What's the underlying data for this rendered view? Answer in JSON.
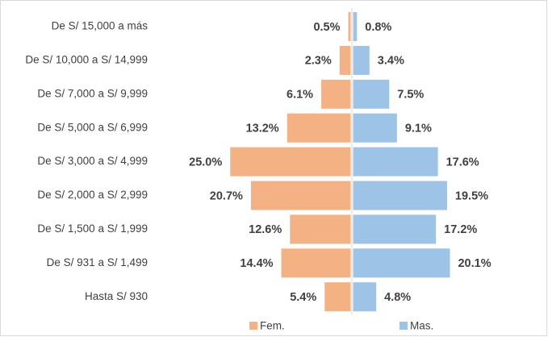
{
  "chart_data": {
    "type": "bar",
    "orientation": "horizontal",
    "layout": "diverging",
    "categories": [
      "De S/ 15,000 a más",
      "De S/ 10,000 a S/ 14,999",
      "De S/ 7,000 a S/ 9,999",
      "De S/ 5,000 a S/ 6,999",
      "De S/ 3,000 a S/ 4,999",
      "De S/ 2,000 a S/ 2,999",
      "De S/ 1,500 a S/ 1,999",
      "De S/ 931 a S/ 1,499",
      "Hasta S/ 930"
    ],
    "series": [
      {
        "name": "Fem.",
        "color": "#f4b183",
        "side": "left",
        "values": [
          0.5,
          2.3,
          6.1,
          13.2,
          25.0,
          20.7,
          12.6,
          14.4,
          5.4
        ],
        "value_labels": [
          "0.5%",
          "2.3%",
          "6.1%",
          "13.2%",
          "25.0%",
          "20.7%",
          "12.6%",
          "14.4%",
          "5.4%"
        ]
      },
      {
        "name": "Mas.",
        "color": "#9dc3e6",
        "side": "right",
        "values": [
          0.8,
          3.4,
          7.5,
          9.1,
          17.6,
          19.5,
          17.2,
          20.1,
          4.8
        ],
        "value_labels": [
          "0.8%",
          "3.4%",
          "7.5%",
          "9.1%",
          "17.6%",
          "19.5%",
          "17.2%",
          "20.1%",
          "4.8%"
        ]
      }
    ],
    "legend": "bottom"
  }
}
